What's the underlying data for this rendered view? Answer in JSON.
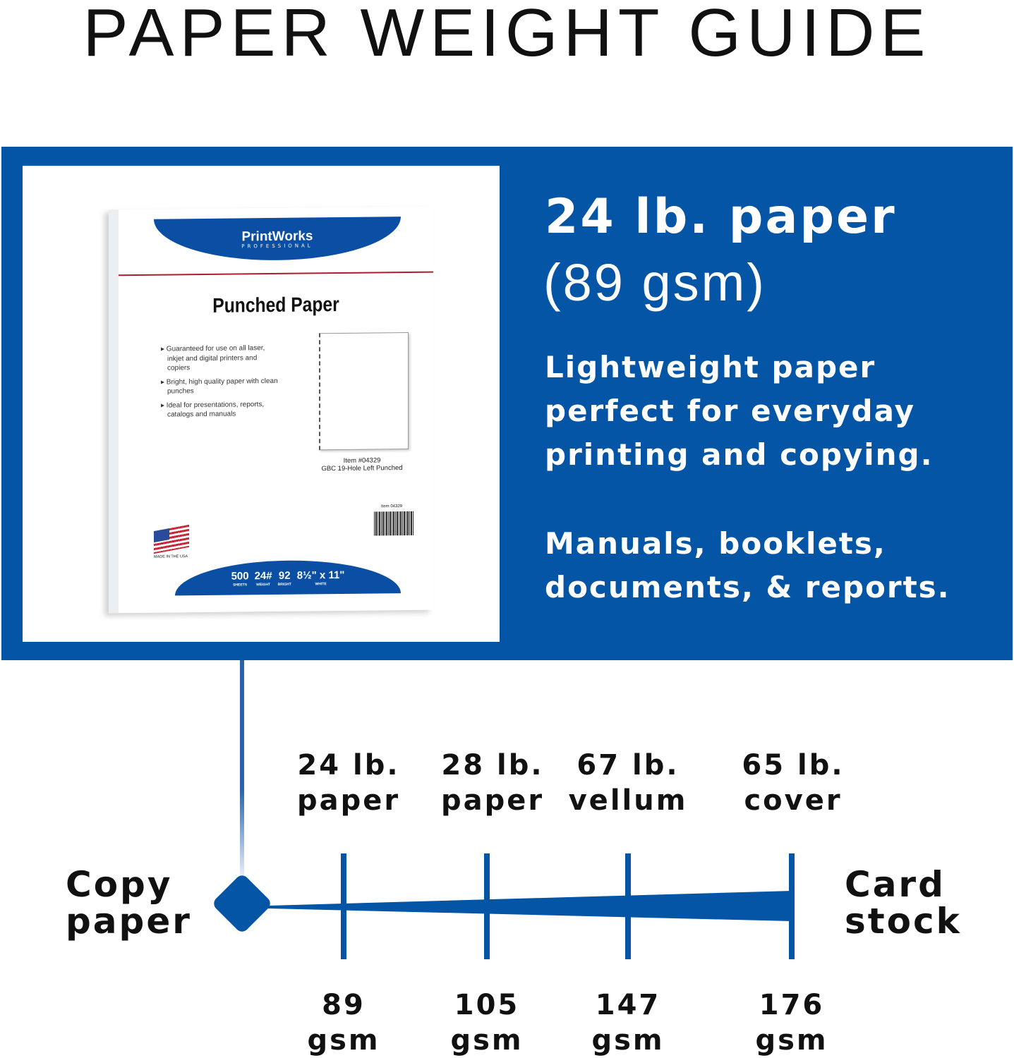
{
  "title": "PAPER WEIGHT GUIDE",
  "colors": {
    "accent": "#0455a6",
    "background": "#ffffff",
    "text": "#111111"
  },
  "product": {
    "brand": "PrintWorks",
    "brand_sub": "PROFESSIONAL",
    "name": "Punched Paper",
    "bullets": [
      "▸ Guaranteed for use on all laser, inkjet and digital printers and copiers",
      "▸ Bright, high quality paper with clean punches",
      "▸ Ideal for presentations, reports, catalogs and manuals"
    ],
    "item_line1": "Item #04329",
    "item_line2": "GBC 19-Hole Left Punched",
    "barcode_label": "Item 04329",
    "made_in": "MADE IN THE USA",
    "specs": [
      {
        "value": "500",
        "label": "SHEETS"
      },
      {
        "value": "24#",
        "label": "WEIGHT"
      },
      {
        "value": "92",
        "label": "BRIGHT"
      },
      {
        "value": "8½\" x 11\"",
        "label": "WHITE"
      }
    ]
  },
  "feature": {
    "heading": "24 lb. paper",
    "subheading": "(89 gsm)",
    "description": "Lightweight paper perfect for everyday printing and copying.",
    "uses": "Manuals, booklets, documents, & reports."
  },
  "scale": {
    "start_label_1": "Copy",
    "start_label_2": "paper",
    "end_label_1": "Card",
    "end_label_2": "stock",
    "selected": "24 lb. paper",
    "ticks": [
      {
        "top1": "24 lb.",
        "top2": "paper",
        "bottom1": "89",
        "bottom2": "gsm"
      },
      {
        "top1": "28 lb.",
        "top2": "paper",
        "bottom1": "105",
        "bottom2": "gsm"
      },
      {
        "top1": "67 lb.",
        "top2": "vellum",
        "bottom1": "147",
        "bottom2": "gsm"
      },
      {
        "top1": "65 lb.",
        "top2": "cover",
        "bottom1": "176",
        "bottom2": "gsm"
      }
    ]
  }
}
